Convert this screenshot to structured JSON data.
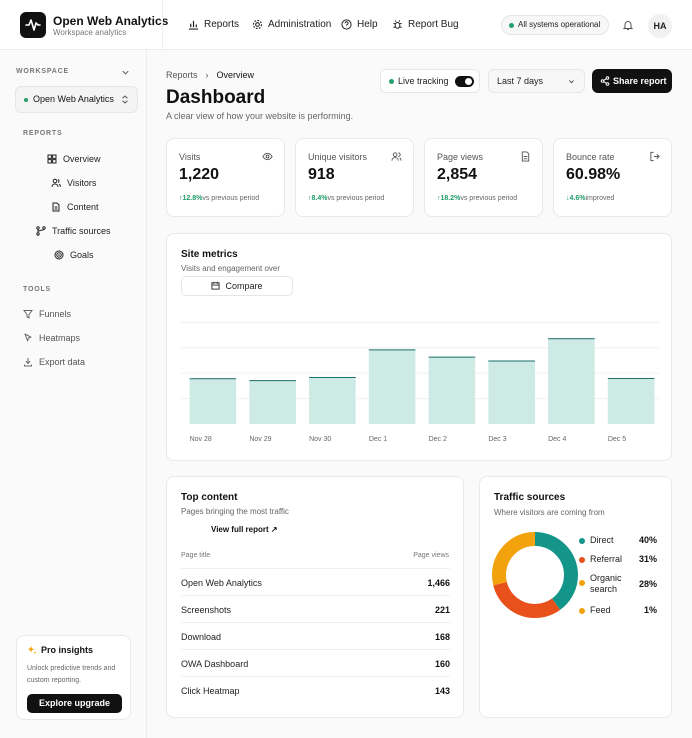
{
  "app": {
    "name": "Open Web Analytics",
    "subtitle": "Workspace analytics"
  },
  "topnav": [
    {
      "label": "Reports",
      "icon": "bar-chart-icon"
    },
    {
      "label": "Administration",
      "icon": "gear-icon"
    },
    {
      "label": "Help",
      "icon": "help-circle-icon"
    },
    {
      "label": "Report Bug",
      "icon": "bug-icon"
    }
  ],
  "status": {
    "label": "All systems operational",
    "color": "#22a06b"
  },
  "user": {
    "initials": "HA"
  },
  "sidebar": {
    "workspace_label": "WORKSPACE",
    "workspace_value": "Open Web Analytics",
    "reports_label": "REPORTS",
    "reports": [
      {
        "label": "Overview",
        "icon": "grid-icon"
      },
      {
        "label": "Visitors",
        "icon": "users-icon"
      },
      {
        "label": "Content",
        "icon": "document-icon"
      },
      {
        "label": "Traffic sources",
        "icon": "branch-icon"
      },
      {
        "label": "Goals",
        "icon": "target-icon"
      }
    ],
    "tools_label": "TOOLS",
    "tools": [
      {
        "label": "Funnels",
        "icon": "funnel-icon"
      },
      {
        "label": "Heatmaps",
        "icon": "cursor-icon"
      },
      {
        "label": "Export data",
        "icon": "download-icon"
      }
    ],
    "pro": {
      "title": "Pro insights",
      "description": "Unlock predictive trends and custom reporting.",
      "button": "Explore upgrade"
    }
  },
  "header": {
    "breadcrumb": [
      "Reports",
      "Overview"
    ],
    "title": "Dashboard",
    "subtitle": "A clear view of how your website is performing.",
    "live_label": "Live tracking",
    "live_on": true,
    "range": "Last 7 days",
    "share_label": "Share report"
  },
  "kpis": [
    {
      "label": "Visits",
      "value": "1,220",
      "delta": "↑12.8%",
      "note": "vs previous period",
      "icon": "eye-icon"
    },
    {
      "label": "Unique visitors",
      "value": "918",
      "delta": "↑8.4%",
      "note": "vs previous period",
      "icon": "users-icon"
    },
    {
      "label": "Page views",
      "value": "2,854",
      "delta": "↑18.2%",
      "note": "vs previous period",
      "icon": "document-icon"
    },
    {
      "label": "Bounce rate",
      "value": "60.98%",
      "delta": "↓4.6%",
      "note": "improved",
      "icon": "exit-icon"
    }
  ],
  "metrics": {
    "title": "Site metrics",
    "subtitle": "Visits and engagement over",
    "compare_label": "Compare"
  },
  "chart_data": {
    "type": "bar",
    "categories": [
      "Nov 28",
      "Nov 29",
      "Nov 30",
      "Dec 1",
      "Dec 2",
      "Dec 3",
      "Dec 4",
      "Dec 5"
    ],
    "values": [
      144,
      138,
      148,
      235,
      212,
      200,
      270,
      145
    ],
    "ylim": [
      0,
      340
    ],
    "grid": true,
    "bar_color": "#cdeae5",
    "bar_edge_color": "#1f6f6a"
  },
  "top_content": {
    "title": "Top content",
    "subtitle": "Pages bringing the most traffic",
    "link": "View full report ↗",
    "col_title": "Page title",
    "col_views": "Page views",
    "rows": [
      {
        "title": "Open Web Analytics",
        "views": "1,466"
      },
      {
        "title": "Screenshots",
        "views": "221"
      },
      {
        "title": "Download",
        "views": "168"
      },
      {
        "title": "OWA Dashboard",
        "views": "160"
      },
      {
        "title": "Click Heatmap",
        "views": "143"
      }
    ]
  },
  "traffic": {
    "title": "Traffic sources",
    "subtitle": "Where visitors are coming from",
    "sources": [
      {
        "name": "Direct",
        "pct": "40%",
        "value": 40,
        "color": "#13958a"
      },
      {
        "name": "Referral",
        "pct": "31%",
        "value": 31,
        "color": "#e8501c"
      },
      {
        "name": "Organic search",
        "pct": "28%",
        "value": 28,
        "color": "#f2a20c"
      },
      {
        "name": "Feed",
        "pct": "1%",
        "value": 1,
        "color": "#f2a20c"
      }
    ]
  }
}
